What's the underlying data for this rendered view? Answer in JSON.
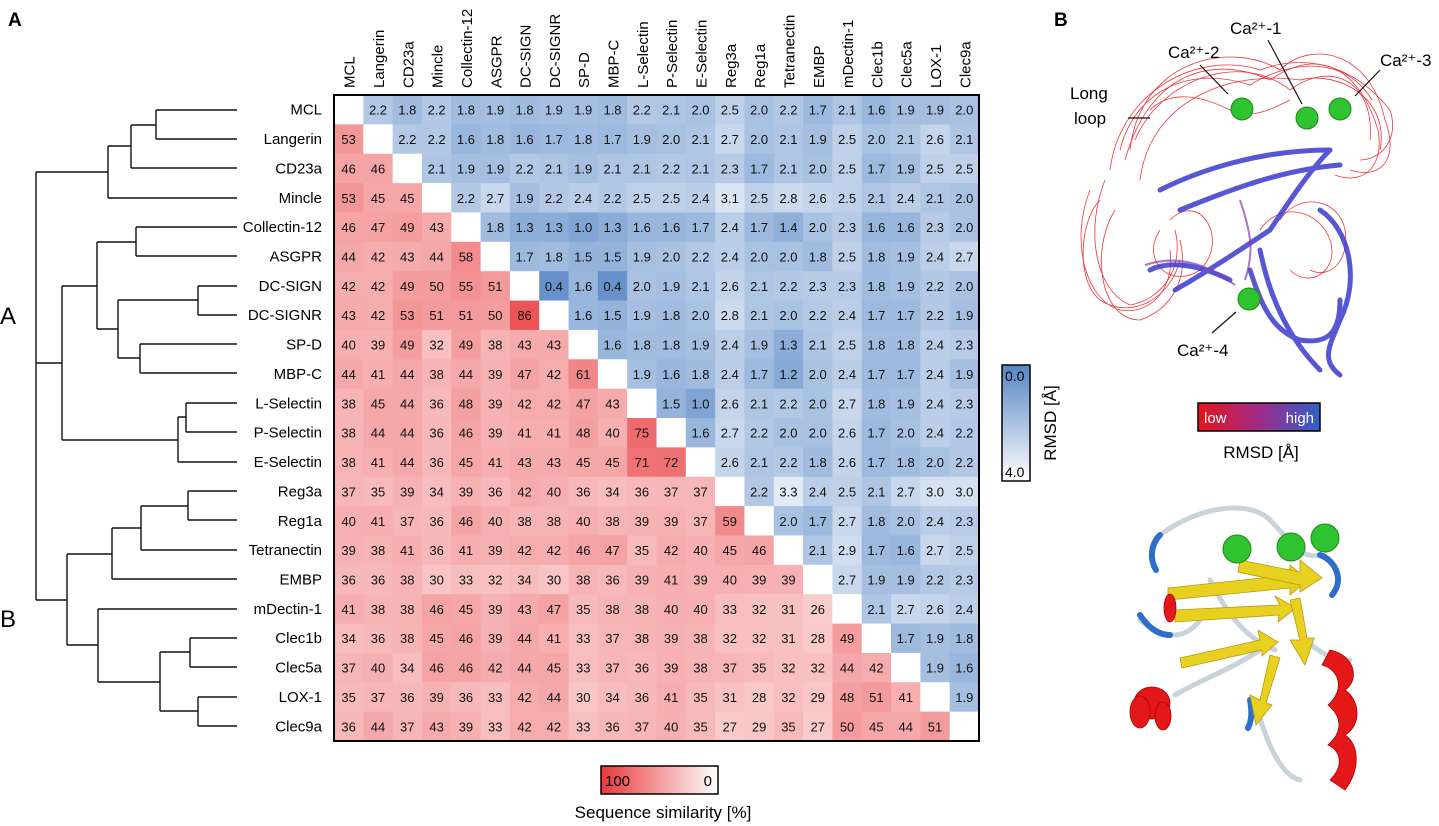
{
  "panels": {
    "a_label": "A",
    "b_label": "B"
  },
  "chart_data": {
    "type": "heatmap",
    "labels": [
      "MCL",
      "Langerin",
      "CD23a",
      "Mincle",
      "Collectin-12",
      "ASGPR",
      "DC-SIGN",
      "DC-SIGNR",
      "SP-D",
      "MBP-C",
      "L-Selectin",
      "P-Selectin",
      "E-Selectin",
      "Reg3a",
      "Reg1a",
      "Tetranectin",
      "EMBP",
      "mDectin-1",
      "Clec1b",
      "Clec5a",
      "LOX-1",
      "Clec9a"
    ],
    "upper_rmsd": [
      [
        null,
        2.2,
        1.8,
        2.2,
        1.8,
        1.9,
        1.8,
        1.9,
        1.9,
        1.8,
        2.2,
        2.1,
        2.0,
        2.5,
        2.0,
        2.2,
        1.7,
        2.1,
        1.6,
        1.9,
        1.9,
        2.0
      ],
      [
        null,
        null,
        2.2,
        2.2,
        1.6,
        1.8,
        1.6,
        1.7,
        1.8,
        1.7,
        1.9,
        2.0,
        2.1,
        2.7,
        2.0,
        2.1,
        1.9,
        2.5,
        2.0,
        2.1,
        2.6,
        2.1
      ],
      [
        null,
        null,
        null,
        2.1,
        1.9,
        1.9,
        2.2,
        2.1,
        1.9,
        2.1,
        2.1,
        2.2,
        2.1,
        2.3,
        1.7,
        2.1,
        2.0,
        2.5,
        1.7,
        1.9,
        2.5,
        2.5
      ],
      [
        null,
        null,
        null,
        null,
        2.2,
        2.7,
        1.9,
        2.2,
        2.4,
        2.2,
        2.5,
        2.5,
        2.4,
        3.1,
        2.5,
        2.8,
        2.6,
        2.5,
        2.1,
        2.4,
        2.1,
        2.0
      ],
      [
        null,
        null,
        null,
        null,
        null,
        1.8,
        1.3,
        1.3,
        1.0,
        1.3,
        1.6,
        1.6,
        1.7,
        2.4,
        1.7,
        1.4,
        2.0,
        2.3,
        1.6,
        1.6,
        2.3,
        2.0
      ],
      [
        null,
        null,
        null,
        null,
        null,
        null,
        1.7,
        1.8,
        1.5,
        1.5,
        1.9,
        2.0,
        2.2,
        2.4,
        2.0,
        2.0,
        1.8,
        2.5,
        1.8,
        1.9,
        2.4,
        2.7
      ],
      [
        null,
        null,
        null,
        null,
        null,
        null,
        null,
        0.4,
        1.6,
        0.4,
        2.0,
        1.9,
        2.1,
        2.6,
        2.1,
        2.2,
        2.3,
        2.3,
        1.8,
        1.9,
        2.2,
        2.0
      ],
      [
        null,
        null,
        null,
        null,
        null,
        null,
        null,
        null,
        1.6,
        1.5,
        1.9,
        1.8,
        2.0,
        2.8,
        2.1,
        2.0,
        2.2,
        2.4,
        1.7,
        1.7,
        2.2,
        1.9
      ],
      [
        null,
        null,
        null,
        null,
        null,
        null,
        null,
        null,
        null,
        1.6,
        1.8,
        1.8,
        1.9,
        2.4,
        1.9,
        1.3,
        2.1,
        2.5,
        1.8,
        1.8,
        2.4,
        2.3
      ],
      [
        null,
        null,
        null,
        null,
        null,
        null,
        null,
        null,
        null,
        null,
        1.9,
        1.6,
        1.8,
        2.4,
        1.7,
        1.2,
        2.0,
        2.4,
        1.7,
        1.7,
        2.4,
        1.9
      ],
      [
        null,
        null,
        null,
        null,
        null,
        null,
        null,
        null,
        null,
        null,
        null,
        1.5,
        1.0,
        2.6,
        2.1,
        2.2,
        2.0,
        2.7,
        1.8,
        1.9,
        2.4,
        2.3
      ],
      [
        null,
        null,
        null,
        null,
        null,
        null,
        null,
        null,
        null,
        null,
        null,
        null,
        1.6,
        2.7,
        2.2,
        2.0,
        2.0,
        2.6,
        1.7,
        2.0,
        2.4,
        2.2
      ],
      [
        null,
        null,
        null,
        null,
        null,
        null,
        null,
        null,
        null,
        null,
        null,
        null,
        null,
        2.6,
        2.1,
        2.2,
        1.8,
        2.6,
        1.7,
        1.8,
        2.0,
        2.2
      ],
      [
        null,
        null,
        null,
        null,
        null,
        null,
        null,
        null,
        null,
        null,
        null,
        null,
        null,
        null,
        2.2,
        3.3,
        2.4,
        2.5,
        2.1,
        2.7,
        3.0,
        3.0
      ],
      [
        null,
        null,
        null,
        null,
        null,
        null,
        null,
        null,
        null,
        null,
        null,
        null,
        null,
        null,
        null,
        2.0,
        1.7,
        2.7,
        1.8,
        2.0,
        2.4,
        2.3
      ],
      [
        null,
        null,
        null,
        null,
        null,
        null,
        null,
        null,
        null,
        null,
        null,
        null,
        null,
        null,
        null,
        null,
        2.1,
        2.9,
        1.7,
        1.6,
        2.7,
        2.5
      ],
      [
        null,
        null,
        null,
        null,
        null,
        null,
        null,
        null,
        null,
        null,
        null,
        null,
        null,
        null,
        null,
        null,
        null,
        2.7,
        1.9,
        1.9,
        2.2,
        2.3
      ],
      [
        null,
        null,
        null,
        null,
        null,
        null,
        null,
        null,
        null,
        null,
        null,
        null,
        null,
        null,
        null,
        null,
        null,
        null,
        2.1,
        2.7,
        2.6,
        2.4
      ],
      [
        null,
        null,
        null,
        null,
        null,
        null,
        null,
        null,
        null,
        null,
        null,
        null,
        null,
        null,
        null,
        null,
        null,
        null,
        null,
        1.7,
        1.9,
        1.8
      ],
      [
        null,
        null,
        null,
        null,
        null,
        null,
        null,
        null,
        null,
        null,
        null,
        null,
        null,
        null,
        null,
        null,
        null,
        null,
        null,
        null,
        1.9,
        1.6
      ],
      [
        null,
        null,
        null,
        null,
        null,
        null,
        null,
        null,
        null,
        null,
        null,
        null,
        null,
        null,
        null,
        null,
        null,
        null,
        null,
        null,
        null,
        1.9
      ],
      [
        null,
        null,
        null,
        null,
        null,
        null,
        null,
        null,
        null,
        null,
        null,
        null,
        null,
        null,
        null,
        null,
        null,
        null,
        null,
        null,
        null,
        null
      ]
    ],
    "lower_similarity": [
      [],
      [
        53
      ],
      [
        46,
        46
      ],
      [
        53,
        45,
        45
      ],
      [
        46,
        47,
        49,
        43
      ],
      [
        44,
        42,
        43,
        44,
        58
      ],
      [
        42,
        42,
        49,
        50,
        55,
        51
      ],
      [
        43,
        42,
        53,
        51,
        51,
        50,
        86
      ],
      [
        40,
        39,
        49,
        32,
        49,
        38,
        43,
        43
      ],
      [
        44,
        41,
        44,
        38,
        44,
        39,
        47,
        42,
        61
      ],
      [
        38,
        45,
        44,
        36,
        48,
        39,
        42,
        42,
        47,
        43
      ],
      [
        38,
        44,
        44,
        36,
        46,
        39,
        41,
        41,
        48,
        40,
        75
      ],
      [
        38,
        41,
        44,
        36,
        45,
        41,
        43,
        43,
        45,
        45,
        71,
        72
      ],
      [
        37,
        35,
        39,
        34,
        39,
        36,
        42,
        40,
        36,
        34,
        36,
        37,
        37
      ],
      [
        40,
        41,
        37,
        36,
        46,
        40,
        38,
        38,
        40,
        38,
        39,
        39,
        37,
        59
      ],
      [
        39,
        38,
        41,
        36,
        41,
        39,
        42,
        42,
        46,
        47,
        35,
        42,
        40,
        45,
        46
      ],
      [
        36,
        36,
        38,
        30,
        33,
        32,
        34,
        30,
        38,
        36,
        39,
        41,
        39,
        40,
        39,
        39
      ],
      [
        41,
        38,
        38,
        46,
        45,
        39,
        43,
        47,
        35,
        38,
        38,
        40,
        40,
        33,
        32,
        31,
        26
      ],
      [
        34,
        36,
        38,
        45,
        46,
        39,
        44,
        41,
        33,
        37,
        38,
        39,
        38,
        32,
        32,
        31,
        28,
        49
      ],
      [
        37,
        40,
        34,
        46,
        46,
        42,
        44,
        45,
        33,
        37,
        36,
        39,
        38,
        37,
        35,
        32,
        32,
        44,
        42
      ],
      [
        35,
        37,
        36,
        39,
        36,
        33,
        42,
        44,
        30,
        34,
        36,
        41,
        35,
        31,
        28,
        32,
        29,
        48,
        51,
        41
      ],
      [
        36,
        44,
        37,
        43,
        39,
        33,
        42,
        42,
        33,
        36,
        37,
        40,
        35,
        27,
        29,
        35,
        27,
        50,
        45,
        44,
        51
      ]
    ],
    "rmsd_range": [
      0.0,
      4.0
    ],
    "similarity_range": [
      0,
      100
    ],
    "colors": {
      "similarity_high": "#e8393c",
      "neutral": "#ffffff",
      "rmsd_low": "#5585c4"
    },
    "dendrogram_groups": [
      "A",
      "B"
    ],
    "rmsd_legend": {
      "title": "RMSD [Å]",
      "top": "0.0",
      "bottom": "4.0"
    },
    "similarity_legend": {
      "title": "Sequence similarity [%]",
      "left": "100",
      "right": "0"
    }
  },
  "panel_b": {
    "labels": {
      "ca1": "Ca²⁺-1",
      "ca2": "Ca²⁺-2",
      "ca3": "Ca²⁺-3",
      "ca4": "Ca²⁺-4",
      "long_loop_1": "Long",
      "long_loop_2": "loop"
    },
    "rmsd_scale": {
      "low": "low",
      "high": "high",
      "title": "RMSD [Å]"
    },
    "colors": {
      "low": "#e8141c",
      "high": "#3060c8",
      "calcium": "#2fc42f",
      "helix": "#e8141c",
      "strand": "#e8d020",
      "coil": "#c8d4dc"
    }
  }
}
